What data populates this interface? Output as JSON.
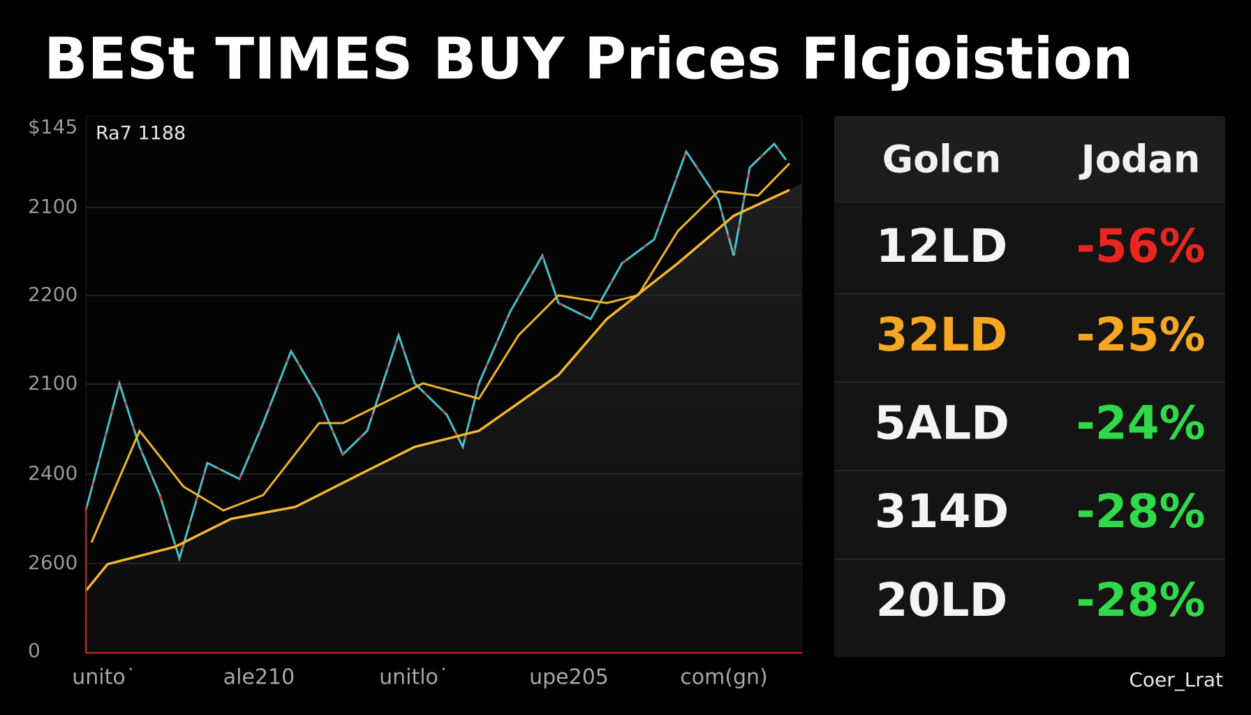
{
  "title": "BESt TIMES  BUY Prices Flcjoistion",
  "chart": {
    "annotation": "Ra7  1188",
    "y_axis_labels": [
      "$145",
      "2100",
      "2200",
      "2100",
      "2400",
      "2600",
      "0"
    ],
    "x_axis_labels": [
      "unito˙",
      "ale210",
      "unitlo˙",
      "upe205",
      "com(gn)"
    ]
  },
  "table": {
    "header": [
      "Golcn",
      "Jodan"
    ],
    "rows": [
      [
        "12LD",
        "-56%"
      ],
      [
        "32LD",
        "-25%"
      ],
      [
        "5ALD",
        "-24%"
      ],
      [
        "314D",
        "-28%"
      ],
      [
        "20LD",
        "-28%"
      ]
    ]
  },
  "footer": "Coer_Lrat"
}
